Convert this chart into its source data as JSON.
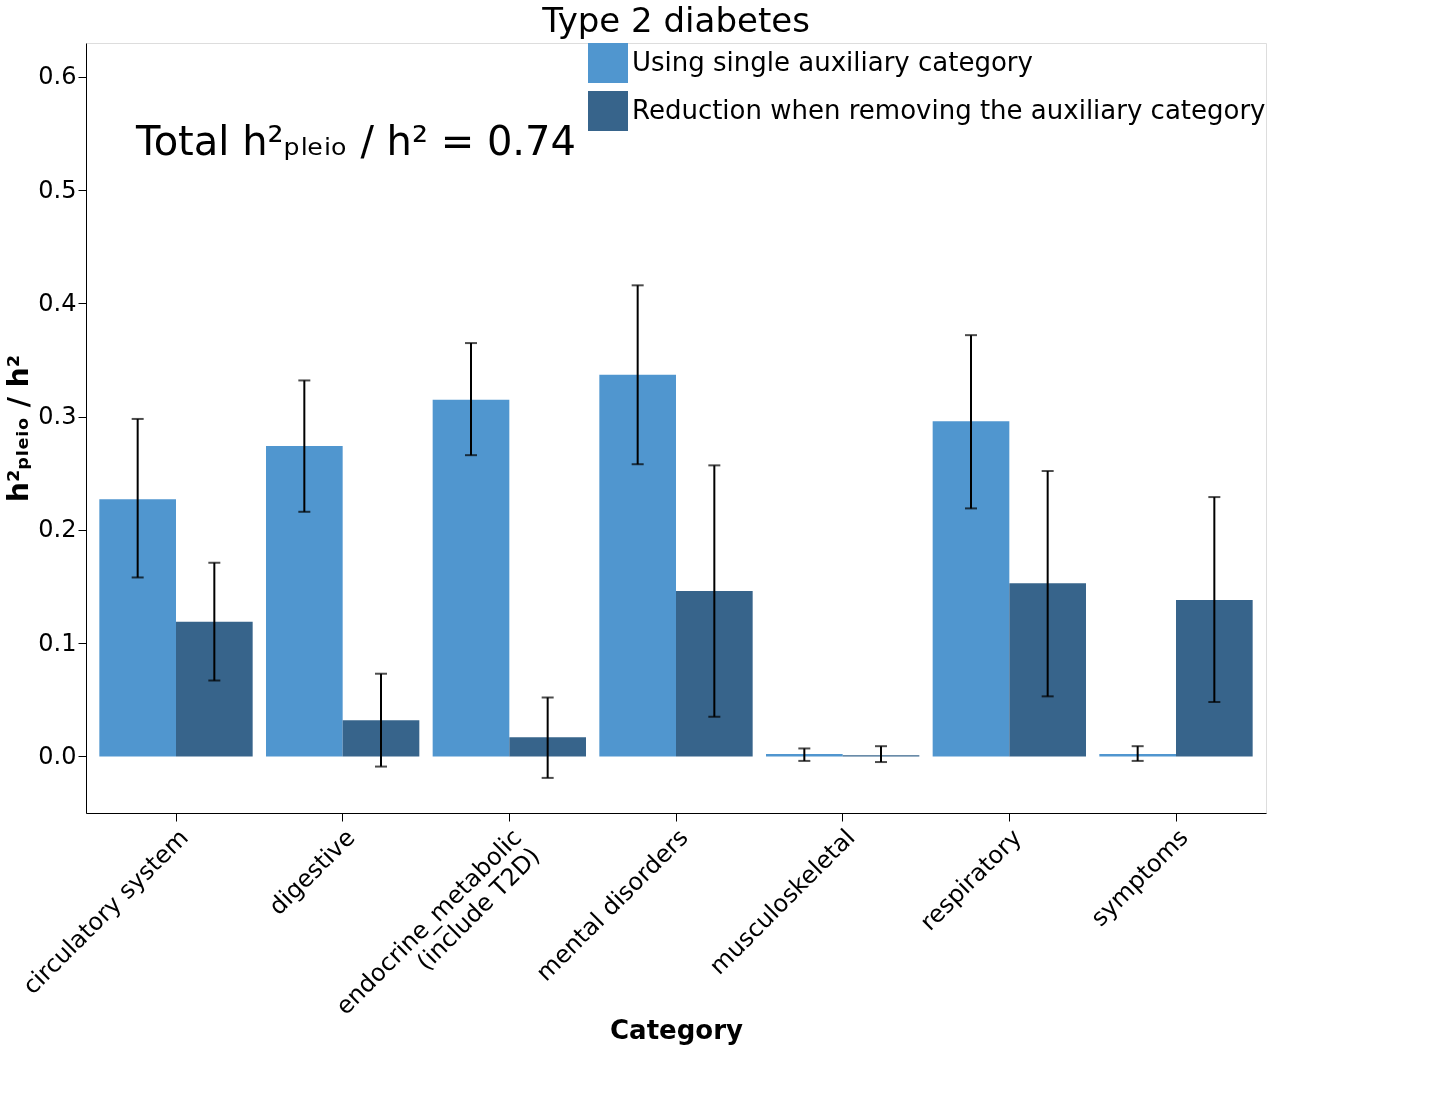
{
  "chart_data": {
    "type": "bar",
    "title": "Type 2 diabetes",
    "xlabel": "Category",
    "ylabel": "h²ₚₗₑᵢₒ / h²",
    "annotations": [
      "Total h²ₚₗₑᵢₒ / h² = 0.74"
    ],
    "categories": [
      "circulatory system",
      "digestive",
      "endocrine_metabolic\n(include T2D)",
      "mental disorders",
      "musculoskeletal",
      "respiratory",
      "symptoms"
    ],
    "series": [
      {
        "name": "Using single auxiliary category",
        "color": "#5096cf",
        "values": [
          0.227,
          0.274,
          0.315,
          0.337,
          0.002,
          0.296,
          0.002
        ],
        "errors": [
          [
            0.158,
            0.298
          ],
          [
            0.216,
            0.332
          ],
          [
            0.266,
            0.365
          ],
          [
            0.258,
            0.416
          ],
          [
            -0.004,
            0.007
          ],
          [
            0.219,
            0.372
          ],
          [
            -0.004,
            0.009
          ]
        ]
      },
      {
        "name": "Reduction when removing the auxiliary category",
        "color": "#37648b",
        "values": [
          0.119,
          0.032,
          0.017,
          0.146,
          0.001,
          0.153,
          0.138
        ],
        "errors": [
          [
            0.067,
            0.171
          ],
          [
            -0.009,
            0.073
          ],
          [
            -0.019,
            0.052
          ],
          [
            0.035,
            0.257
          ],
          [
            -0.005,
            0.009
          ],
          [
            0.053,
            0.252
          ],
          [
            0.048,
            0.229
          ]
        ]
      }
    ],
    "ylim": [
      -0.05,
      0.63
    ],
    "yticks": [
      {
        "value": 0,
        "label": "0.0"
      },
      0.1,
      0.2,
      0.3,
      0.4,
      0.5,
      0.6
    ],
    "grid": false,
    "legend": "top right"
  }
}
